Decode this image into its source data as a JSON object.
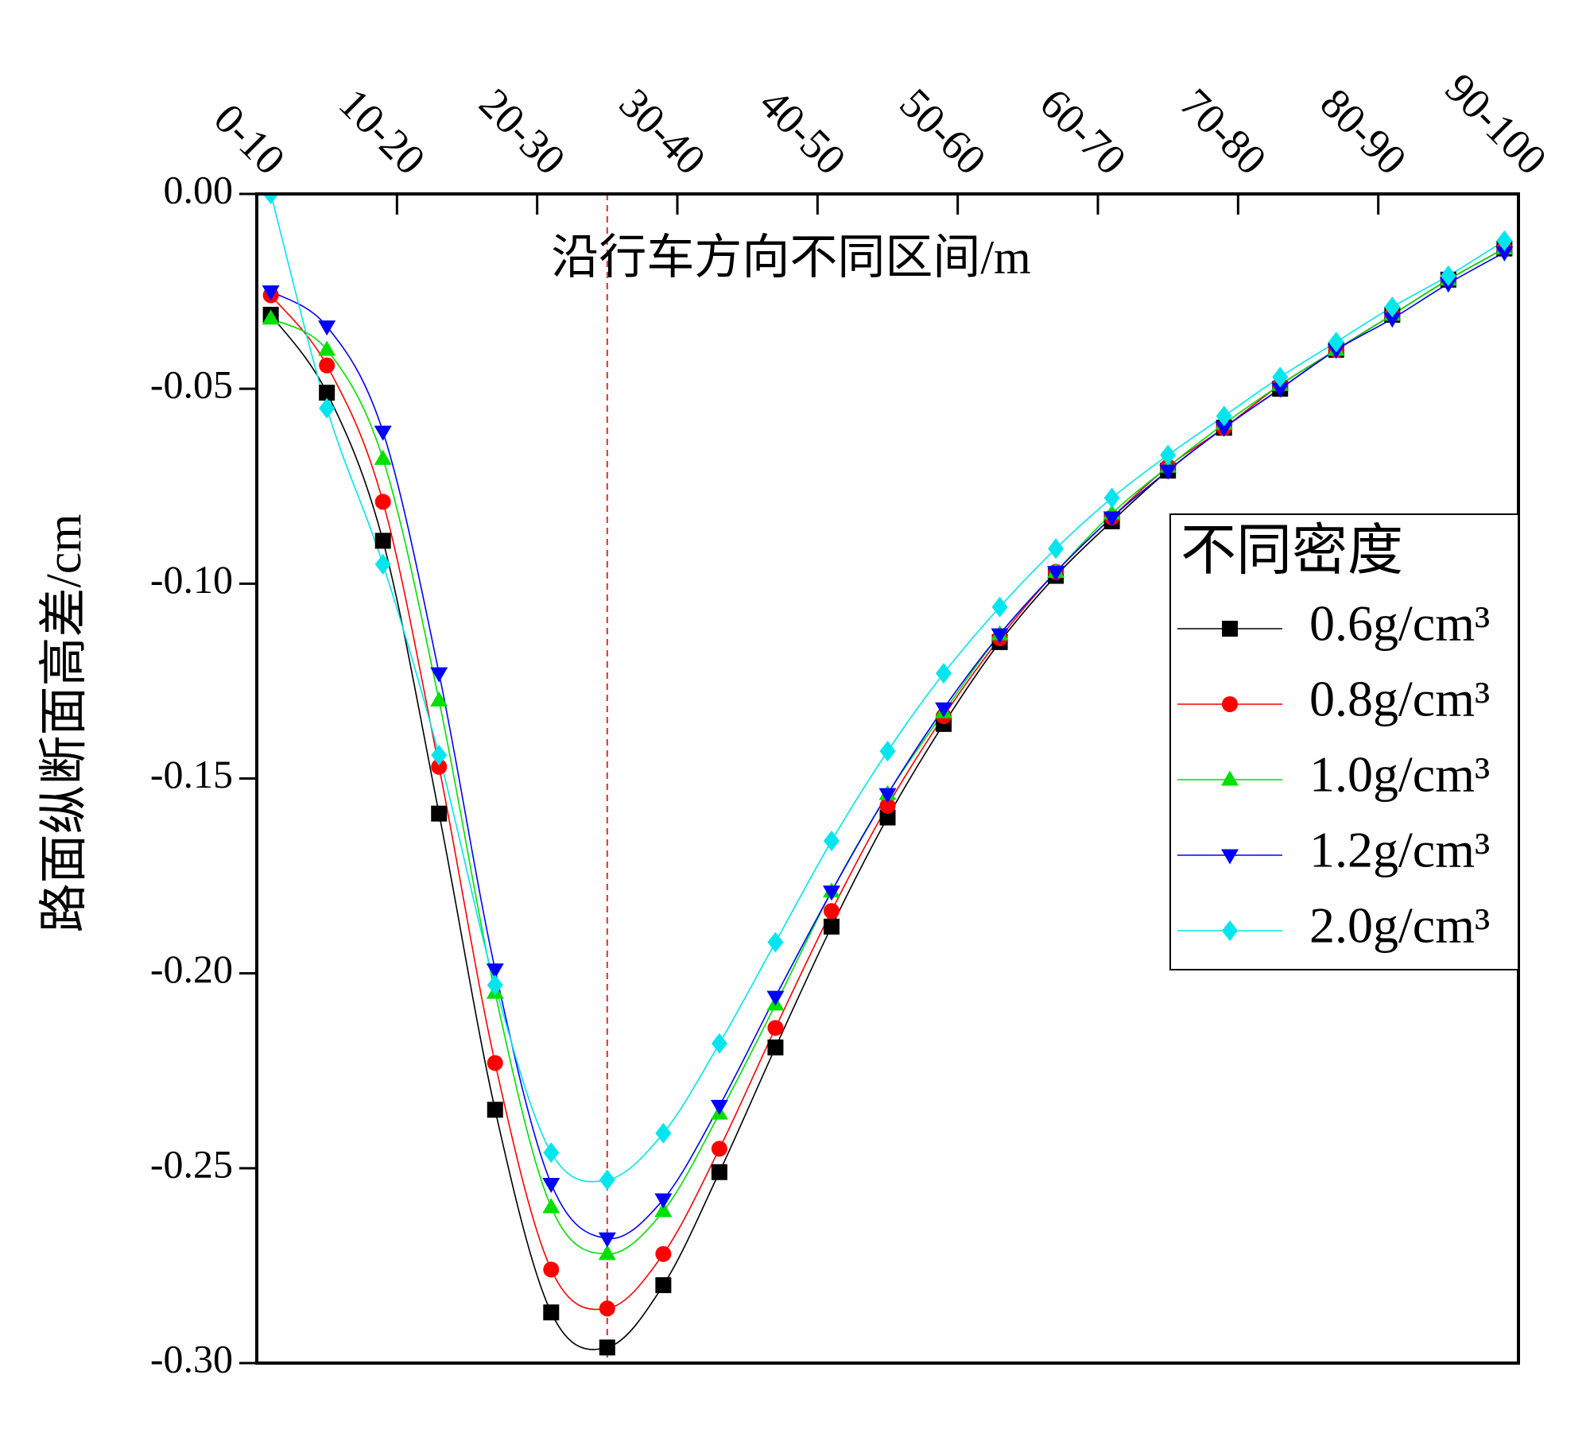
{
  "chart_data": {
    "type": "line",
    "x_label": "沿行车方向不同区间/m",
    "y_label": "路面纵断面高差/cm",
    "legend_title": "不同密度",
    "legend_position": "right",
    "x": [
      1,
      5,
      9,
      13,
      17,
      21,
      25,
      29,
      33,
      37,
      41,
      45,
      49,
      53,
      57,
      61,
      65,
      69,
      73,
      77,
      81,
      85,
      89
    ],
    "xlim": [
      0,
      90
    ],
    "xticks": [
      {
        "value": 0,
        "label": "0-10"
      },
      {
        "value": 10,
        "label": "10-20"
      },
      {
        "value": 20,
        "label": "20-30"
      },
      {
        "value": 30,
        "label": "30-40"
      },
      {
        "value": 40,
        "label": "40-50"
      },
      {
        "value": 50,
        "label": "50-60"
      },
      {
        "value": 60,
        "label": "60-70"
      },
      {
        "value": 70,
        "label": "70-80"
      },
      {
        "value": 80,
        "label": "80-90"
      },
      {
        "value": 90,
        "label": "90-100"
      }
    ],
    "ylim": [
      -0.3,
      0
    ],
    "yticks": [
      {
        "value": 0,
        "label": "0.00"
      },
      {
        "value": -0.05,
        "label": "-0.05"
      },
      {
        "value": -0.1,
        "label": "-0.10"
      },
      {
        "value": -0.15,
        "label": "-0.15"
      },
      {
        "value": -0.2,
        "label": "-0.20"
      },
      {
        "value": -0.25,
        "label": "-0.25"
      },
      {
        "value": -0.3,
        "label": "-0.30"
      }
    ],
    "vline": {
      "x": 25,
      "color": "#e0302a"
    },
    "series": [
      {
        "name": "0.6g/cm³",
        "color": "#000000",
        "marker": "square",
        "values": [
          -0.031,
          -0.051,
          -0.089,
          -0.159,
          -0.235,
          -0.287,
          -0.296,
          -0.28,
          -0.251,
          -0.219,
          -0.188,
          -0.16,
          -0.136,
          -0.115,
          -0.098,
          -0.084,
          -0.071,
          -0.06,
          -0.05,
          -0.04,
          -0.031,
          -0.022,
          -0.014
        ]
      },
      {
        "name": "0.8g/cm³",
        "color": "#ff0000",
        "marker": "circle",
        "values": [
          -0.026,
          -0.044,
          -0.079,
          -0.147,
          -0.223,
          -0.276,
          -0.286,
          -0.272,
          -0.245,
          -0.214,
          -0.184,
          -0.157,
          -0.134,
          -0.114,
          -0.097,
          -0.083,
          -0.07,
          -0.06,
          -0.049,
          -0.04,
          -0.031,
          -0.022,
          -0.014
        ]
      },
      {
        "name": "1.0g/cm³",
        "color": "#00e000",
        "marker": "triangle-up",
        "values": [
          -0.032,
          -0.04,
          -0.068,
          -0.13,
          -0.205,
          -0.26,
          -0.272,
          -0.261,
          -0.236,
          -0.208,
          -0.179,
          -0.154,
          -0.133,
          -0.113,
          -0.097,
          -0.082,
          -0.07,
          -0.059,
          -0.049,
          -0.04,
          -0.031,
          -0.022,
          -0.014
        ]
      },
      {
        "name": "1.2g/cm³",
        "color": "#0000ff",
        "marker": "triangle-down",
        "values": [
          -0.025,
          -0.034,
          -0.061,
          -0.123,
          -0.199,
          -0.254,
          -0.268,
          -0.258,
          -0.234,
          -0.206,
          -0.179,
          -0.154,
          -0.132,
          -0.113,
          -0.097,
          -0.083,
          -0.071,
          -0.06,
          -0.05,
          -0.04,
          -0.032,
          -0.023,
          -0.015
        ]
      },
      {
        "name": "2.0g/cm³",
        "color": "#00e5ee",
        "marker": "diamond",
        "values": [
          0,
          -0.055,
          -0.095,
          -0.144,
          -0.203,
          -0.246,
          -0.253,
          -0.241,
          -0.218,
          -0.192,
          -0.166,
          -0.143,
          -0.123,
          -0.106,
          -0.091,
          -0.078,
          -0.067,
          -0.057,
          -0.047,
          -0.038,
          -0.029,
          -0.021,
          -0.012
        ]
      }
    ]
  }
}
